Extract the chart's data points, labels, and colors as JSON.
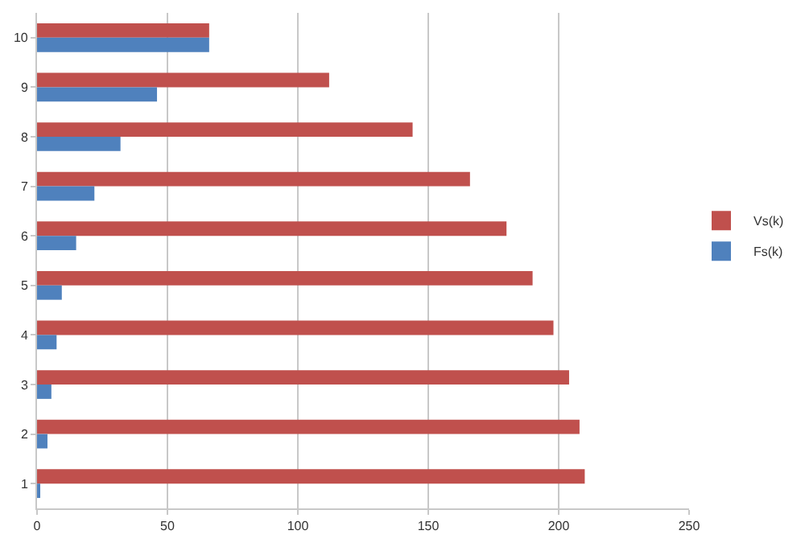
{
  "chart_data": {
    "type": "bar",
    "orientation": "horizontal",
    "categories": [
      "10",
      "9",
      "8",
      "7",
      "6",
      "5",
      "4",
      "3",
      "2",
      "1"
    ],
    "series": [
      {
        "name": "Vs(k)",
        "color": "#c0504d",
        "values": [
          66,
          112,
          144,
          166,
          180,
          190,
          198,
          204,
          208,
          210
        ]
      },
      {
        "name": "Fs(k)",
        "color": "#4f81bd",
        "values": [
          66,
          46,
          32,
          22,
          15,
          9.5,
          7.5,
          5.5,
          4,
          1
        ]
      }
    ],
    "xlim": [
      0,
      250
    ],
    "xticks": [
      0,
      50,
      100,
      150,
      200,
      250
    ],
    "grid": "x",
    "legend": "right"
  }
}
